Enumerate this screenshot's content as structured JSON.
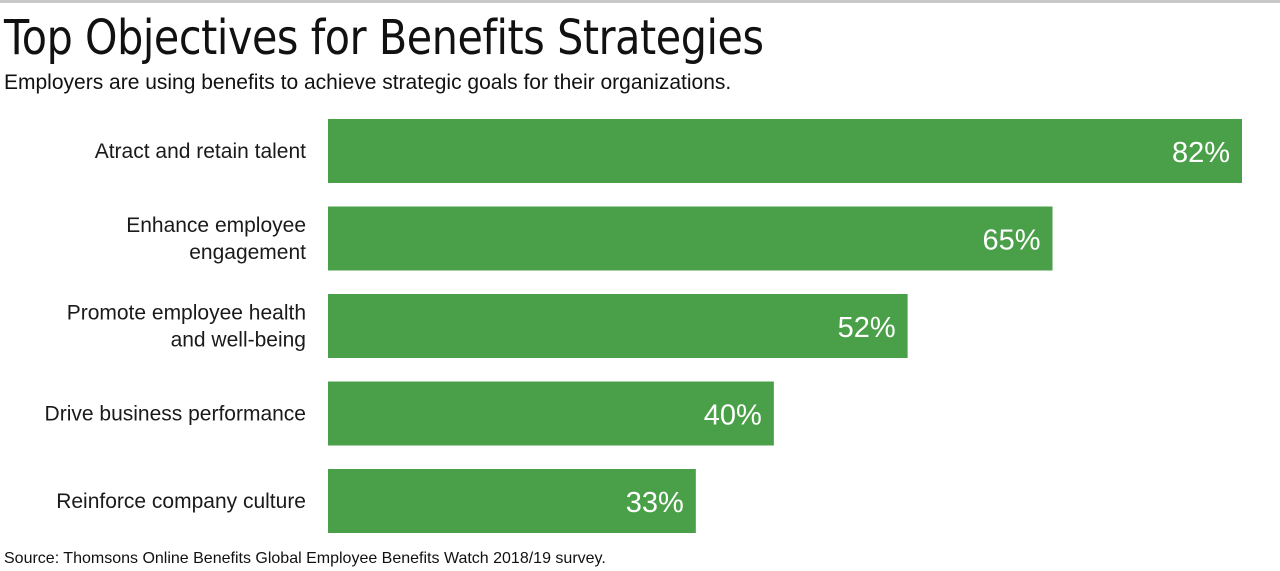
{
  "header": {
    "title": "Top Objectives for Benefits Strategies",
    "subtitle": "Employers are using benefits to achieve strategic goals for their organizations."
  },
  "footer": {
    "source": "Source: Thomsons Online Benefits Global Employee Benefits Watch 2018/19 survey."
  },
  "colors": {
    "bar": "#4aa048",
    "value_label": "#ffffff",
    "category_label": "#1a1a1a"
  },
  "chart_data": {
    "type": "bar",
    "orientation": "horizontal",
    "categories": [
      [
        "Atract and retain talent"
      ],
      [
        "Enhance employee",
        "engagement"
      ],
      [
        "Promote employee health",
        "and well-being"
      ],
      [
        "Drive business performance"
      ],
      [
        "Reinforce company culture"
      ]
    ],
    "values": [
      82,
      65,
      52,
      40,
      33
    ],
    "value_labels": [
      "82%",
      "65%",
      "52%",
      "40%",
      "33%"
    ],
    "title": "Top Objectives for Benefits Strategies",
    "subtitle": "Employers are using benefits to achieve strategic goals for their organizations.",
    "xlabel": "",
    "ylabel": "",
    "xlim": [
      0,
      82
    ],
    "grid": false,
    "legend": "none"
  }
}
